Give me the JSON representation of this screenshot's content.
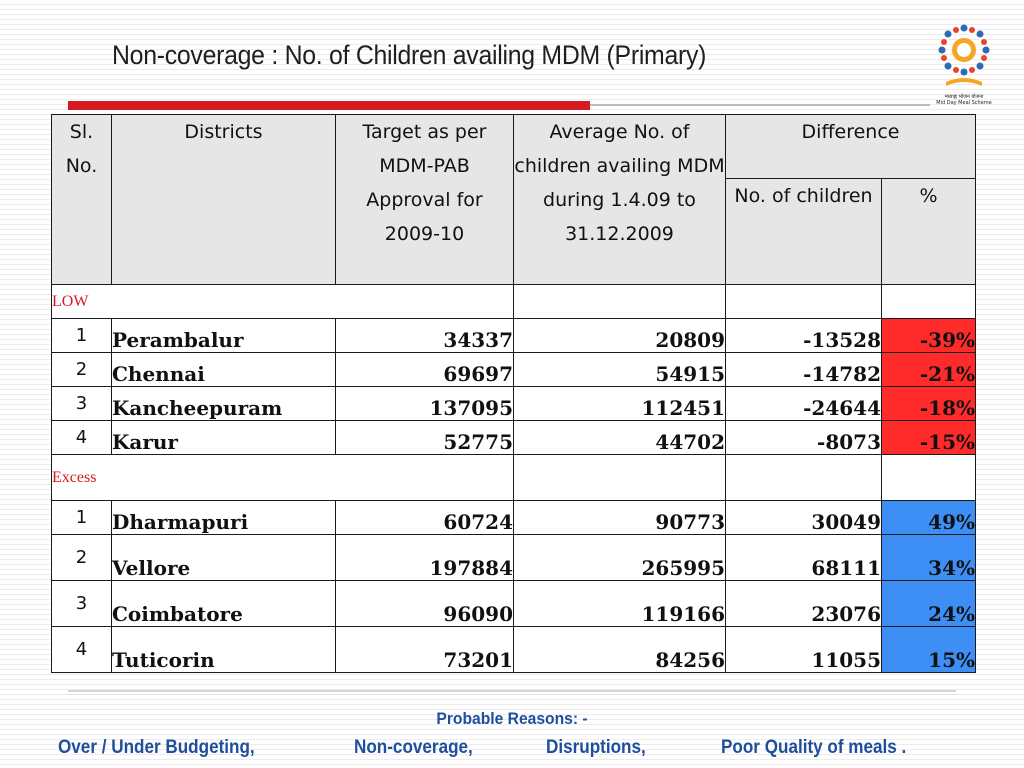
{
  "title": "Non-coverage :  No. of Children availing MDM (Primary)",
  "logo": {
    "text_line1": "मध्याह्न भोजन योजना",
    "text_line2": "Mid Day Meal Scheme",
    "icon": "mid-day-meal-logo"
  },
  "table": {
    "headers": {
      "sl_no": "Sl. No.",
      "districts": "Districts",
      "target": "Target as per MDM-PAB Approval for 2009-10",
      "average": "Average No. of children availing MDM during 1.4.09 to 31.12.2009",
      "difference": "Difference",
      "diff_children": "No. of children",
      "diff_pct": "%"
    },
    "groups": [
      {
        "label": "LOW",
        "rows": [
          {
            "sl": "1",
            "district": "Perambalur",
            "target": "34337",
            "average": "20809",
            "diff": "-13528",
            "pct": "-39%"
          },
          {
            "sl": "2",
            "district": "Chennai",
            "target": "69697",
            "average": "54915",
            "diff": "-14782",
            "pct": "-21%"
          },
          {
            "sl": "3",
            "district": "Kancheepuram",
            "target": "137095",
            "average": "112451",
            "diff": "-24644",
            "pct": "-18%"
          },
          {
            "sl": "4",
            "district": "Karur",
            "target": "52775",
            "average": "44702",
            "diff": "-8073",
            "pct": "-15%"
          }
        ]
      },
      {
        "label": "Excess",
        "rows": [
          {
            "sl": "1",
            "district": "Dharmapuri",
            "target": "60724",
            "average": "90773",
            "diff": "30049",
            "pct": "49%"
          },
          {
            "sl": "2",
            "district": "Vellore",
            "target": "197884",
            "average": "265995",
            "diff": "68111",
            "pct": "34%"
          },
          {
            "sl": "3",
            "district": "Coimbatore",
            "target": "96090",
            "average": "119166",
            "diff": "23076",
            "pct": "24%"
          },
          {
            "sl": "4",
            "district": "Tuticorin",
            "target": "73201",
            "average": "84256",
            "diff": "11055",
            "pct": "15%"
          }
        ]
      }
    ]
  },
  "footer": {
    "title": "Probable Reasons: -",
    "reasons": [
      "Over / Under Budgeting,",
      "Non-coverage,",
      "Disruptions,",
      "Poor Quality of meals ."
    ]
  },
  "colors": {
    "accent_red": "#d71920",
    "negative_fill": "#ff2a2a",
    "positive_fill": "#3d8ef5",
    "footer_blue": "#1f4e9c"
  }
}
